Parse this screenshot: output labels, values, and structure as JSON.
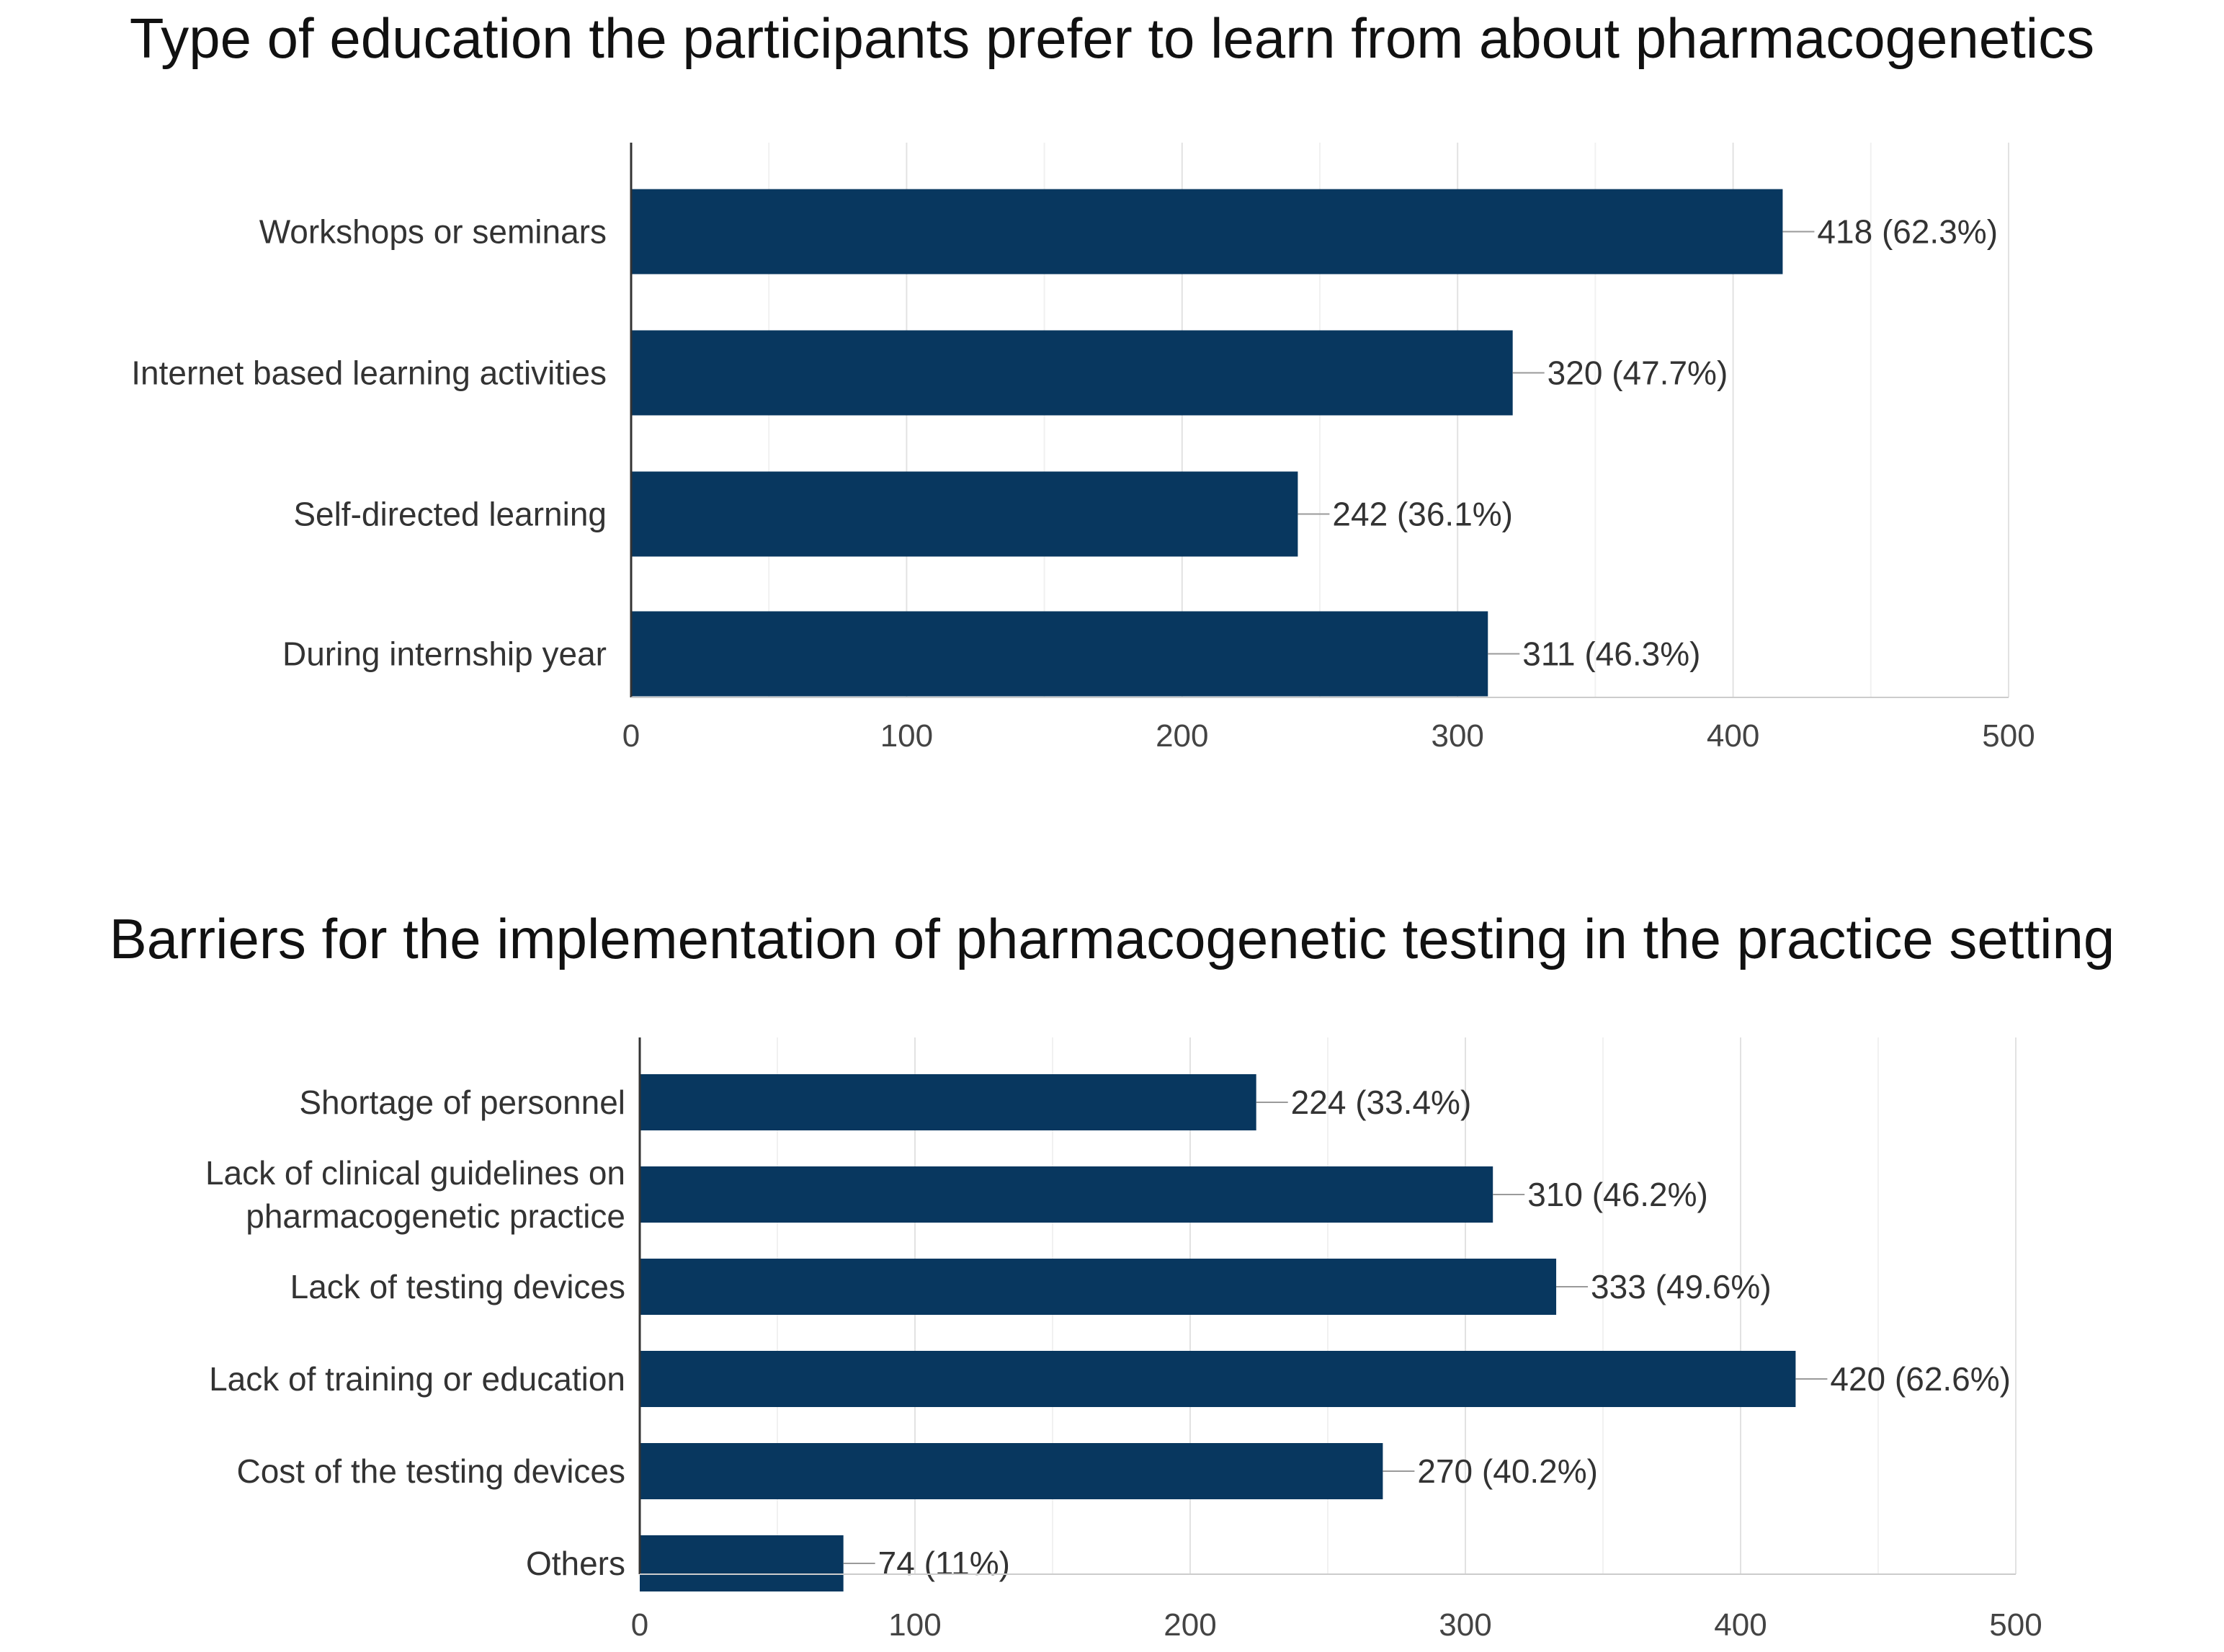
{
  "chart_data": [
    {
      "type": "bar",
      "orientation": "horizontal",
      "title": "Type of education the participants prefer to learn from about pharmacogenetics",
      "categories": [
        "Workshops or seminars",
        "Internet based learning activities",
        "Self-directed learning",
        "During internship year"
      ],
      "values": [
        418,
        320,
        242,
        311
      ],
      "data_labels": [
        "418 (62.3%)",
        "320 (47.7%)",
        "242 (36.1%)",
        "311 (46.3%)"
      ],
      "xlim": [
        0,
        500
      ],
      "ticks": [
        0,
        100,
        200,
        300,
        400,
        500
      ],
      "grid": true,
      "bar_color": "#08375f"
    },
    {
      "type": "bar",
      "orientation": "horizontal",
      "title": "Barriers for the implementation of pharmacogenetic testing in the practice setting",
      "categories": [
        "Shortage of personnel",
        "Lack of clinical guidelines on pharmacogenetic practice",
        "Lack of testing devices",
        "Lack of training or education",
        "Cost of the testing devices",
        "Others"
      ],
      "category_lines": [
        [
          "Shortage of personnel"
        ],
        [
          "Lack of clinical guidelines on",
          "pharmacogenetic practice"
        ],
        [
          "Lack of testing devices"
        ],
        [
          "Lack of training or education"
        ],
        [
          "Cost of the testing devices"
        ],
        [
          "Others"
        ]
      ],
      "values": [
        224,
        310,
        333,
        420,
        270,
        74
      ],
      "data_labels": [
        "224 (33.4%)",
        "310 (46.2%)",
        "333 (49.6%)",
        "420 (62.6%)",
        "270 (40.2%)",
        "74 (11%)"
      ],
      "xlim": [
        0,
        500
      ],
      "ticks": [
        0,
        100,
        200,
        300,
        400,
        500
      ],
      "grid": true,
      "bar_color": "#08375f"
    }
  ]
}
